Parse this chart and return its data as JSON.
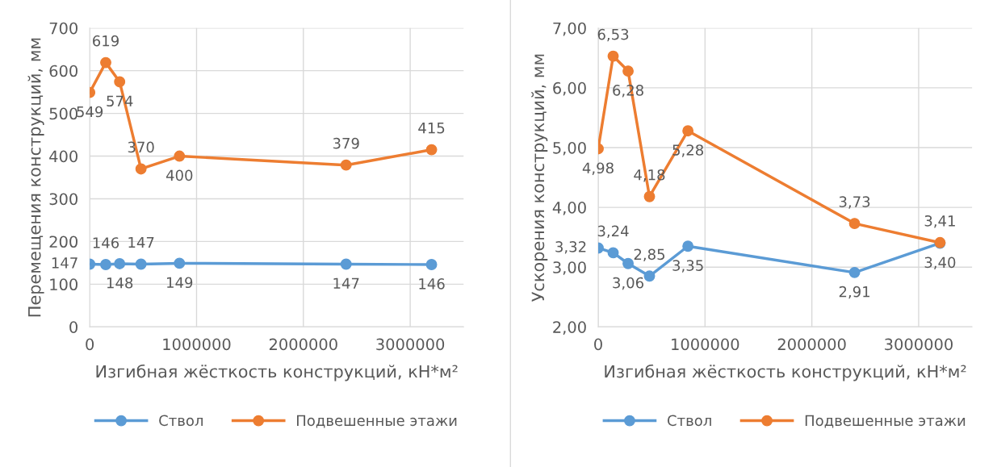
{
  "chart_data": [
    {
      "type": "line",
      "xlabel": "Изгибная жёсткость конструкций, кН*м²",
      "ylabel": "Перемещения конструкций, мм",
      "x": [
        0,
        150000,
        280000,
        480000,
        840000,
        2400000,
        3200000
      ],
      "series": [
        {
          "name": "Ствол",
          "color": "#5b9bd5",
          "values": [
            147,
            146,
            148,
            147,
            149,
            147,
            146
          ],
          "value_labels": [
            "147",
            "146",
            "148",
            "147",
            "149",
            "147",
            "146"
          ]
        },
        {
          "name": "Подвешенные этажи",
          "color": "#ed7d31",
          "values": [
            549,
            619,
            574,
            370,
            400,
            379,
            415
          ],
          "value_labels": [
            "549",
            "619",
            "574",
            "370",
            "400",
            "379",
            "415"
          ]
        }
      ],
      "xlim": [
        0,
        3500000
      ],
      "xticks": [
        0,
        1000000,
        2000000,
        3000000
      ],
      "ylim": [
        0,
        700
      ],
      "yticks": [
        0,
        100,
        200,
        300,
        400,
        500,
        600,
        700
      ],
      "grid": true,
      "legend": "bottom",
      "marker": "circle",
      "line_style": "solid"
    },
    {
      "type": "line",
      "xlabel": "Изгибная жёсткость конструкций, кН*м²",
      "ylabel": "Ускорения конструкций, мм",
      "x": [
        0,
        140000,
        280000,
        480000,
        840000,
        2400000,
        3200000
      ],
      "series": [
        {
          "name": "Ствол",
          "color": "#5b9bd5",
          "values": [
            3.32,
            3.24,
            3.06,
            2.85,
            3.35,
            2.91,
            3.4
          ],
          "value_labels": [
            "3,32",
            "3,24",
            "3,06",
            "2,85",
            "3,35",
            "2,91",
            "3,40"
          ]
        },
        {
          "name": "Подвешенные этажи",
          "color": "#ed7d31",
          "values": [
            4.98,
            6.53,
            6.28,
            4.18,
            5.28,
            3.73,
            3.41
          ],
          "value_labels": [
            "4,98",
            "6,53",
            "6,28",
            "4,18",
            "5,28",
            "3,73",
            "3,41"
          ]
        }
      ],
      "xlim": [
        0,
        3500000
      ],
      "xticks": [
        0,
        1000000,
        2000000,
        3000000
      ],
      "ylim": [
        2,
        7
      ],
      "yticks": [
        {
          "value": 2,
          "label": "2,00"
        },
        {
          "value": 3,
          "label": "3,00"
        },
        {
          "value": 4,
          "label": "4,00"
        },
        {
          "value": 5,
          "label": "5,00"
        },
        {
          "value": 6,
          "label": "6,00"
        },
        {
          "value": 7,
          "label": "7,00"
        }
      ],
      "grid": true,
      "legend": "bottom",
      "marker": "circle",
      "line_style": "solid"
    }
  ]
}
